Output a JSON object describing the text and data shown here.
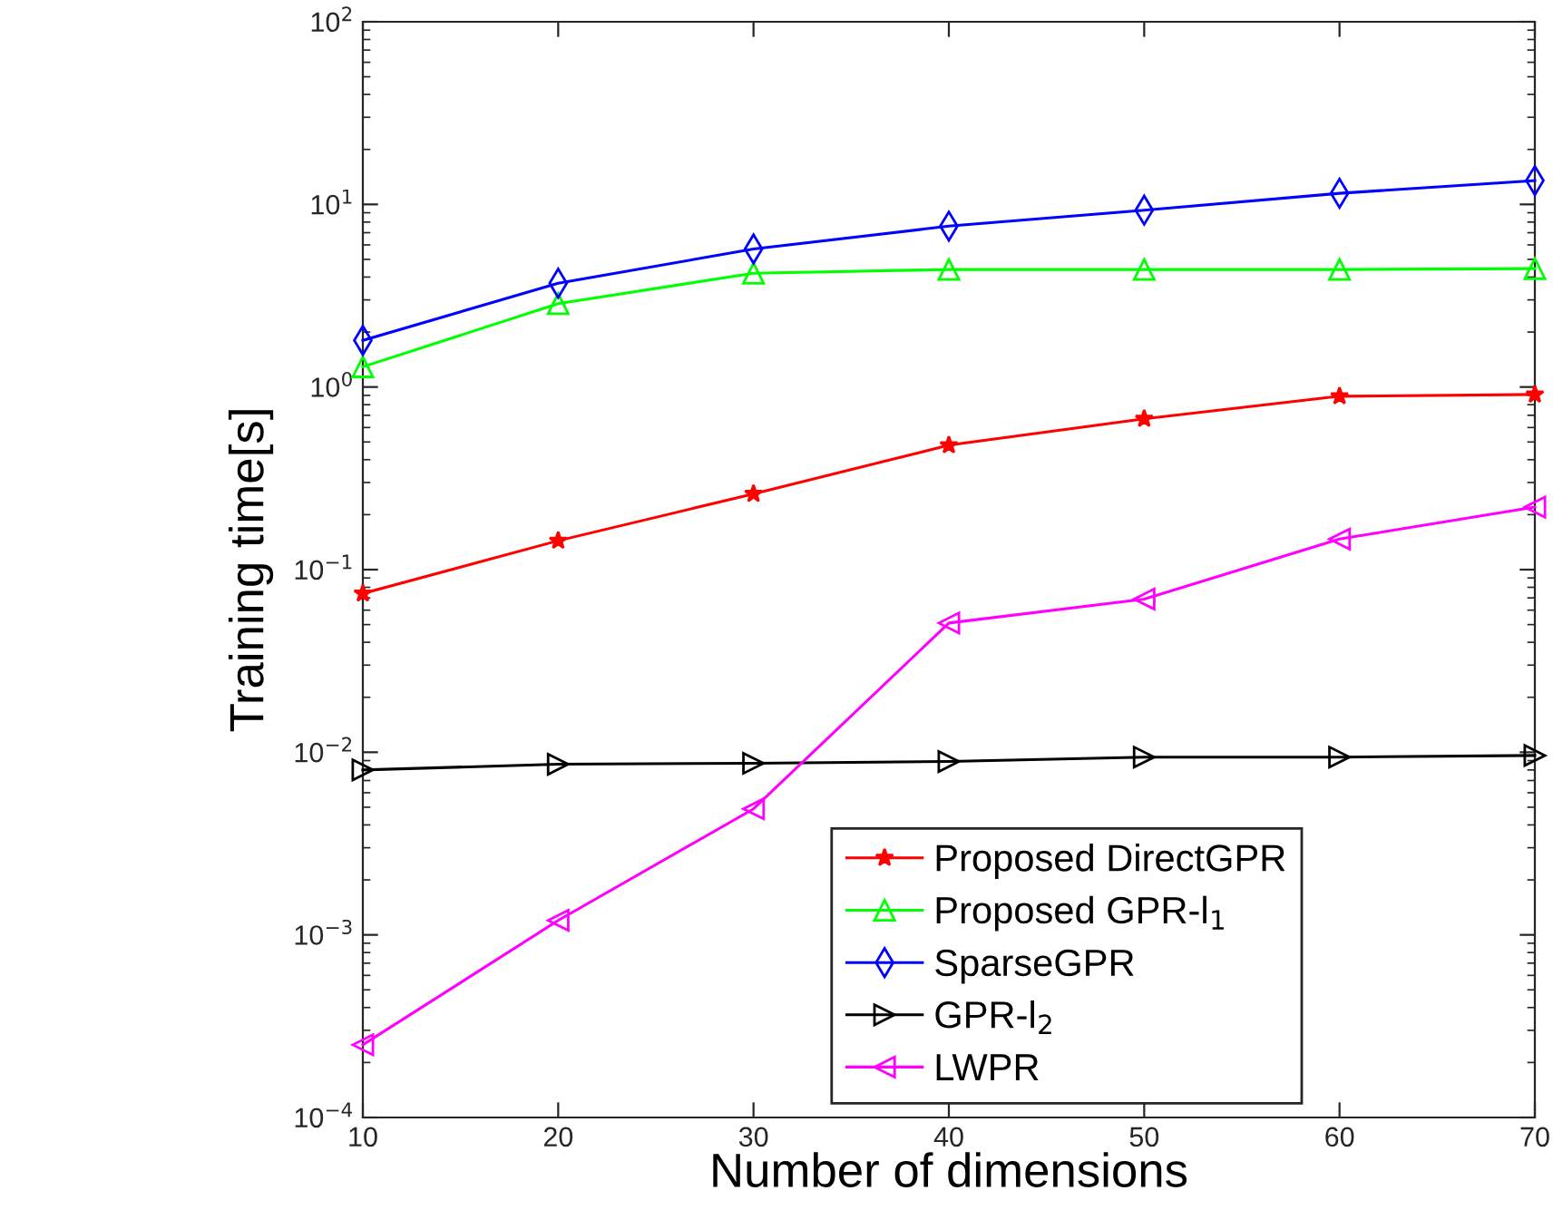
{
  "chart_data": {
    "type": "line",
    "xlabel": "Number of dimensions",
    "ylabel": "Training time[s]",
    "log": "y",
    "grid": false,
    "legend": "bottom right",
    "line_style": "solid",
    "x": [
      10,
      20,
      30,
      40,
      50,
      60,
      70
    ],
    "xlim": [
      10,
      70
    ],
    "xticks": [
      10,
      20,
      30,
      40,
      50,
      60,
      70
    ],
    "ylim": [
      0.0001,
      100
    ],
    "yticks": [
      {
        "value": 0.0001,
        "label": "10$^{−4}$"
      },
      {
        "value": 0.001,
        "label": "10$^{−3}$"
      },
      {
        "value": 0.01,
        "label": "10$^{−2}$"
      },
      {
        "value": 0.1,
        "label": "10$^{−1}$"
      },
      {
        "value": 1,
        "label": "10$^{0}$"
      },
      {
        "value": 10,
        "label": "10$^{1}$"
      },
      {
        "value": 100,
        "label": "10$^{2}$"
      }
    ],
    "series": [
      {
        "name": "Proposed DirectGPR",
        "color": "#ff0000",
        "marker": "star",
        "values": [
          0.074,
          0.144,
          0.26,
          0.48,
          0.67,
          0.89,
          0.91
        ]
      },
      {
        "name": "Proposed GPR-l$_{1}$",
        "color": "#00ff00",
        "marker": "triangle",
        "values": [
          1.29,
          2.86,
          4.2,
          4.4,
          4.4,
          4.4,
          4.45
        ]
      },
      {
        "name": "SparseGPR",
        "color": "#0000ff",
        "marker": "diamond",
        "values": [
          1.8,
          3.7,
          5.7,
          7.6,
          9.3,
          11.5,
          13.5
        ]
      },
      {
        "name": "GPR-l$_{2}$",
        "color": "#000000",
        "marker": "triangle_right",
        "values": [
          0.008,
          0.0086,
          0.0087,
          0.0089,
          0.0094,
          0.0094,
          0.0096
        ]
      },
      {
        "name": "LWPR",
        "color": "#ff00ff",
        "marker": "triangle_left",
        "values": [
          0.00025,
          0.0012,
          0.0049,
          0.051,
          0.069,
          0.147,
          0.22
        ]
      }
    ]
  }
}
